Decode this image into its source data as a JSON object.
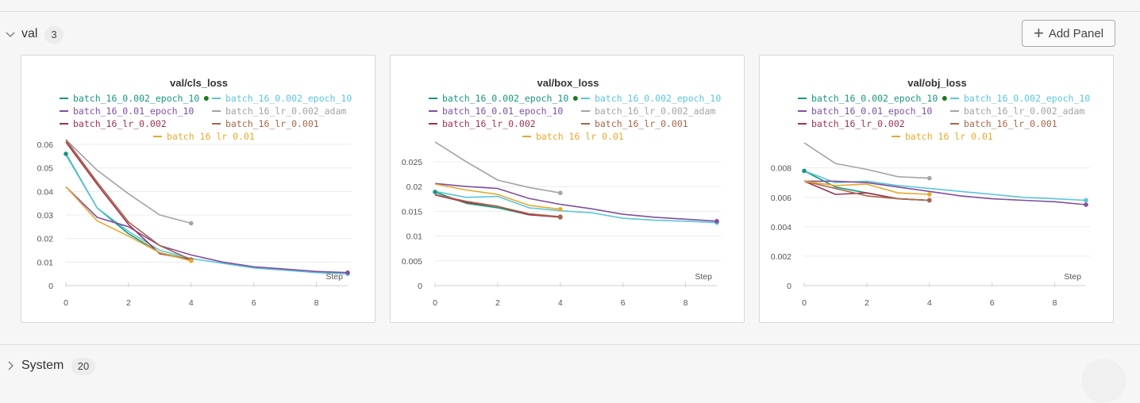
{
  "section": {
    "title": "val",
    "count": "3",
    "add_panel_label": "Add Panel"
  },
  "system": {
    "title": "System",
    "count": "20"
  },
  "legend_rows": [
    [
      0,
      1
    ],
    [
      2,
      3
    ],
    [
      4,
      5
    ],
    [
      6
    ]
  ],
  "colors": {
    "batch_16_0.002_epoch_10 (teal)": "#17967f",
    "batch_16_0.002_epoch_10 (cyan)": "#5bc5db",
    "batch_16_0.01_epoch_10": "#7f4f9f",
    "batch_16_lr_0.002_adam": "#a3a3a3",
    "batch_16_lr_0.002": "#a0324f",
    "batch_16_lr_0.001": "#a8654a",
    "batch_16_lr_0.01": "#e6a92c"
  },
  "chart_data": [
    {
      "type": "line",
      "title": "val/cls_loss",
      "xlabel": "Step",
      "ylabel": "",
      "xlim": [
        0,
        9
      ],
      "ylim": [
        0,
        0.06
      ],
      "x_ticks": [
        "0",
        "2",
        "4",
        "6",
        "8"
      ],
      "y_ticks": [
        "0",
        "0.01",
        "0.02",
        "0.03",
        "0.04",
        "0.05",
        "0.06"
      ],
      "series": [
        {
          "name": "batch_16_0.002_epoch_10",
          "color": "#17967f",
          "dot": true,
          "x": [
            0,
            1,
            2,
            3,
            4
          ],
          "y": [
            0.056,
            0.033,
            0.022,
            0.014,
            0.011
          ]
        },
        {
          "name": "batch_16_0.002_epoch_10",
          "color": "#5bc5db",
          "x": [
            0,
            1,
            2,
            3,
            4,
            5,
            6,
            7,
            8,
            9
          ],
          "y": [
            0.0555,
            0.033,
            0.023,
            0.015,
            0.0115,
            0.0095,
            0.0075,
            0.0065,
            0.0055,
            0.005
          ]
        },
        {
          "name": "batch_16_0.01_epoch_10",
          "color": "#7f4f9f",
          "x": [
            0,
            1,
            2,
            3,
            4,
            5,
            6,
            7,
            8,
            9
          ],
          "y": [
            0.042,
            0.029,
            0.025,
            0.017,
            0.013,
            0.01,
            0.008,
            0.007,
            0.006,
            0.0055
          ]
        },
        {
          "name": "batch_16_lr_0.002_adam",
          "color": "#a3a3a3",
          "x": [
            0,
            1,
            2,
            3,
            4
          ],
          "y": [
            0.062,
            0.049,
            0.039,
            0.03,
            0.0265
          ]
        },
        {
          "name": "batch_16_lr_0.002",
          "color": "#a0324f",
          "x": [
            0,
            1,
            2,
            3,
            4
          ],
          "y": [
            0.061,
            0.043,
            0.026,
            0.0135,
            0.011
          ]
        },
        {
          "name": "batch_16_lr_0.001",
          "color": "#a8654a",
          "x": [
            0,
            1,
            2,
            3,
            4
          ],
          "y": [
            0.062,
            0.044,
            0.027,
            0.017,
            0.011
          ]
        },
        {
          "name": "batch_16_lr_0.01",
          "color": "#e6a92c",
          "x": [
            0,
            1,
            2,
            3,
            4
          ],
          "y": [
            0.042,
            0.0275,
            0.021,
            0.014,
            0.0105
          ]
        }
      ]
    },
    {
      "type": "line",
      "title": "val/box_loss",
      "xlabel": "Step",
      "ylabel": "",
      "xlim": [
        0,
        9
      ],
      "ylim": [
        0,
        0.0285
      ],
      "x_ticks": [
        "0",
        "2",
        "4",
        "6",
        "8"
      ],
      "y_ticks": [
        "0",
        "0.005",
        "0.01",
        "0.015",
        "0.02",
        "0.025"
      ],
      "series": [
        {
          "name": "batch_16_0.002_epoch_10",
          "color": "#17967f",
          "dot": true,
          "x": [
            0,
            1,
            2,
            3,
            4
          ],
          "y": [
            0.0189,
            0.0166,
            0.0157,
            0.0143,
            0.0139
          ]
        },
        {
          "name": "batch_16_0.002_epoch_10",
          "color": "#5bc5db",
          "x": [
            0,
            1,
            2,
            3,
            4,
            5,
            6,
            7,
            8,
            9
          ],
          "y": [
            0.019,
            0.0178,
            0.018,
            0.0157,
            0.0151,
            0.0147,
            0.0136,
            0.0132,
            0.013,
            0.0127
          ]
        },
        {
          "name": "batch_16_0.01_epoch_10",
          "color": "#7f4f9f",
          "x": [
            0,
            1,
            2,
            3,
            4,
            5,
            6,
            7,
            8,
            9
          ],
          "y": [
            0.0206,
            0.02,
            0.0196,
            0.0176,
            0.0164,
            0.0155,
            0.0144,
            0.0138,
            0.0134,
            0.013
          ]
        },
        {
          "name": "batch_16_lr_0.002_adam",
          "color": "#a3a3a3",
          "x": [
            0,
            1,
            2,
            3,
            4
          ],
          "y": [
            0.029,
            0.025,
            0.0213,
            0.0198,
            0.0187
          ]
        },
        {
          "name": "batch_16_lr_0.002",
          "color": "#a0324f",
          "x": [
            0,
            1,
            2,
            3,
            4
          ],
          "y": [
            0.0183,
            0.0168,
            0.016,
            0.0143,
            0.0138
          ]
        },
        {
          "name": "batch_16_lr_0.001",
          "color": "#a8654a",
          "x": [
            0,
            1,
            2,
            3,
            4
          ],
          "y": [
            0.0184,
            0.017,
            0.016,
            0.0145,
            0.0139
          ]
        },
        {
          "name": "batch_16_lr_0.01",
          "color": "#e6a92c",
          "x": [
            0,
            1,
            2,
            3,
            4
          ],
          "y": [
            0.0205,
            0.0193,
            0.0184,
            0.0162,
            0.0154
          ]
        }
      ]
    },
    {
      "type": "line",
      "title": "val/obj_loss",
      "xlabel": "Step",
      "ylabel": "",
      "xlim": [
        0,
        9
      ],
      "ylim": [
        0,
        0.0096
      ],
      "x_ticks": [
        "0",
        "2",
        "4",
        "6",
        "8"
      ],
      "y_ticks": [
        "0",
        "0.002",
        "0.004",
        "0.006",
        "0.008"
      ],
      "series": [
        {
          "name": "batch_16_0.002_epoch_10",
          "color": "#17967f",
          "dot": true,
          "x": [
            0,
            1,
            2,
            3,
            4
          ],
          "y": [
            0.0078,
            0.0067,
            0.0063,
            0.0059,
            0.0058
          ]
        },
        {
          "name": "batch_16_0.002_epoch_10",
          "color": "#5bc5db",
          "x": [
            0,
            1,
            2,
            3,
            4,
            5,
            6,
            7,
            8,
            9
          ],
          "y": [
            0.0078,
            0.007,
            0.0071,
            0.0068,
            0.0066,
            0.0064,
            0.0062,
            0.006,
            0.0059,
            0.0058
          ]
        },
        {
          "name": "batch_16_0.01_epoch_10",
          "color": "#7f4f9f",
          "x": [
            0,
            1,
            2,
            3,
            4,
            5,
            6,
            7,
            8,
            9
          ],
          "y": [
            0.0071,
            0.0071,
            0.007,
            0.0067,
            0.0064,
            0.0061,
            0.0059,
            0.0058,
            0.0057,
            0.0055
          ]
        },
        {
          "name": "batch_16_lr_0.002_adam",
          "color": "#a3a3a3",
          "x": [
            0,
            1,
            2,
            3,
            4
          ],
          "y": [
            0.0097,
            0.0083,
            0.0079,
            0.0074,
            0.0073
          ]
        },
        {
          "name": "batch_16_lr_0.002",
          "color": "#a0324f",
          "x": [
            0,
            1,
            2,
            3,
            4
          ],
          "y": [
            0.0071,
            0.0062,
            0.0063,
            0.0059,
            0.0058
          ]
        },
        {
          "name": "batch_16_lr_0.001",
          "color": "#a8654a",
          "x": [
            0,
            1,
            2,
            3,
            4
          ],
          "y": [
            0.0071,
            0.0066,
            0.0061,
            0.0059,
            0.0058
          ]
        },
        {
          "name": "batch_16_lr_0.01",
          "color": "#e6a92c",
          "x": [
            0,
            1,
            2,
            3,
            4
          ],
          "y": [
            0.0071,
            0.0068,
            0.0069,
            0.0063,
            0.0062
          ]
        }
      ]
    }
  ]
}
